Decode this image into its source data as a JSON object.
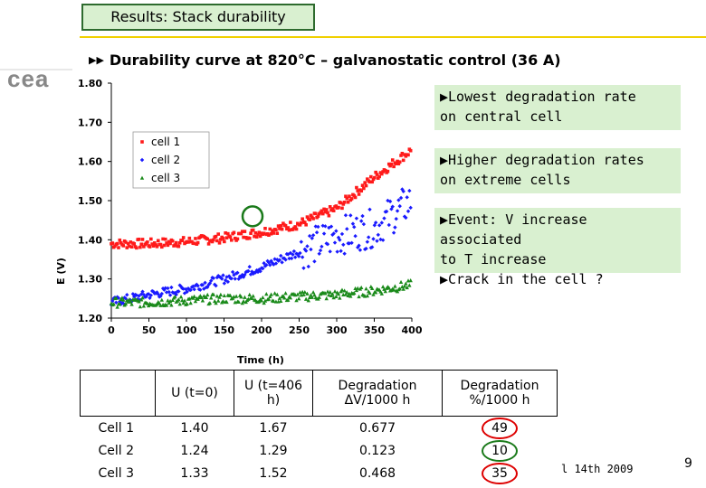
{
  "slide": {
    "title": "Results: Stack durability",
    "subtitle": "Durability curve at 820°C – galvanostatic control (36 A)",
    "subtitle_bullet": "▶▶",
    "logo_text": "cea",
    "notes": [
      {
        "lines": [
          "▶Lowest degradation rate",
          "on central cell"
        ]
      },
      {
        "lines": [
          "▶Higher degradation rates",
          "on extreme cells"
        ]
      },
      {
        "lines": [
          "▶Event: V increase associated",
          "to T increase",
          "▶Crack in the cell ?"
        ]
      }
    ],
    "footer": "l 14th 2009",
    "page_number": "9"
  },
  "colors": {
    "title_bg": "#d9f0d0",
    "title_border": "#2e6b2e",
    "accent_rule": "#f0d000",
    "note_bg": "#d9f0d0",
    "cell1": "#ff1a1a",
    "cell2": "#1a1aff",
    "cell3": "#1a8a1a",
    "circle_red": "#dd0000",
    "circle_green": "#1a7a1a"
  },
  "chart_data": {
    "type": "scatter",
    "xlabel": "Time (h)",
    "ylabel": "E (V)",
    "xlim": [
      0,
      400
    ],
    "ylim": [
      1.2,
      1.8
    ],
    "xticks": [
      "0",
      "50",
      "100",
      "150",
      "200",
      "250",
      "300",
      "350",
      "400"
    ],
    "yticks": [
      "1.20",
      "1.30",
      "1.40",
      "1.50",
      "1.60",
      "1.70",
      "1.80"
    ],
    "grid": false,
    "legend_position": "top-left",
    "series": [
      {
        "name": "cell 1",
        "marker": "square",
        "x": [
          0,
          50,
          100,
          150,
          200,
          250,
          300,
          350,
          400
        ],
        "y": [
          1.39,
          1.39,
          1.395,
          1.405,
          1.42,
          1.44,
          1.48,
          1.56,
          1.63
        ]
      },
      {
        "name": "cell 2",
        "marker": "diamond",
        "x": [
          0,
          50,
          100,
          150,
          200,
          250,
          300,
          350,
          400
        ],
        "y": [
          1.24,
          1.26,
          1.275,
          1.3,
          1.33,
          1.37,
          1.41,
          1.43,
          1.5
        ]
      },
      {
        "name": "cell 3",
        "marker": "triangle",
        "x": [
          0,
          50,
          100,
          150,
          200,
          250,
          300,
          350,
          400
        ],
        "y": [
          1.24,
          1.24,
          1.245,
          1.25,
          1.25,
          1.255,
          1.26,
          1.27,
          1.285
        ]
      }
    ],
    "annotation": {
      "type": "circle",
      "x": 200,
      "y": 1.46
    }
  },
  "table": {
    "headers": [
      "",
      "U (t=0)",
      "U (t=406 h)",
      "Degradation ΔV/1000 h",
      "Degradation %/1000 h"
    ],
    "rows": [
      {
        "cells": [
          "Cell 1",
          "1.40",
          "1.67",
          "0.677",
          "49"
        ],
        "circle": "red"
      },
      {
        "cells": [
          "Cell 2",
          "1.24",
          "1.29",
          "0.123",
          "10"
        ],
        "circle": "green"
      },
      {
        "cells": [
          "Cell 3",
          "1.33",
          "1.52",
          "0.468",
          "35"
        ],
        "circle": "red"
      }
    ]
  }
}
